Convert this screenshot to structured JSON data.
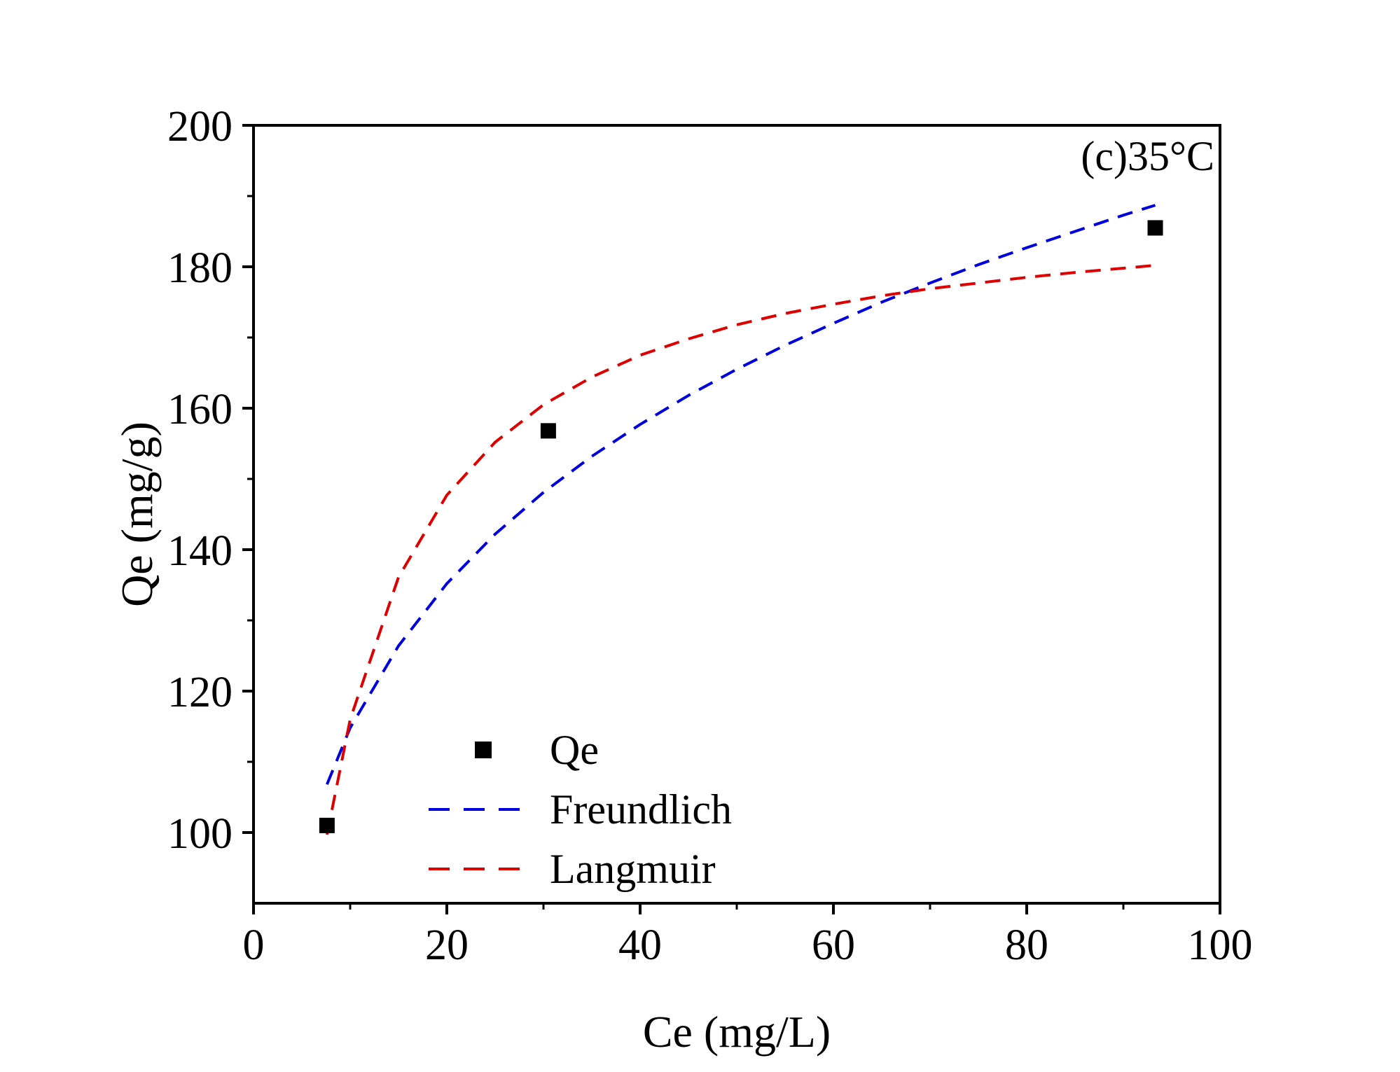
{
  "chart_data": {
    "type": "scatter",
    "title": "",
    "annotation": "(c)35°C",
    "xlabel": "Ce (mg/L)",
    "ylabel": "Qe (mg/g)",
    "xlim": [
      0,
      100
    ],
    "ylim": [
      90,
      200
    ],
    "xticks": [
      0,
      20,
      40,
      60,
      80,
      100
    ],
    "yticks": [
      100,
      120,
      140,
      160,
      180,
      200
    ],
    "grid": false,
    "legend_position": "bottom-left",
    "series": [
      {
        "name": "Qe",
        "kind": "marker",
        "marker": "square",
        "color": "#000000",
        "x": [
          7.6,
          30.5,
          93.3
        ],
        "y": [
          101.0,
          156.8,
          185.5
        ]
      },
      {
        "name": "Freundlich",
        "kind": "line",
        "dash": "dashed",
        "color": "#0000dd",
        "x": [
          7.6,
          10,
          15,
          20,
          25,
          30,
          35,
          40,
          45,
          50,
          55,
          60,
          65,
          70,
          75,
          80,
          85,
          90,
          93.3
        ],
        "y": [
          106.8,
          114.8,
          126.4,
          135.2,
          142.2,
          148.1,
          153.2,
          157.7,
          161.8,
          165.5,
          168.9,
          172.0,
          175.0,
          177.7,
          180.3,
          182.7,
          185.0,
          187.3,
          188.7
        ]
      },
      {
        "name": "Langmuir",
        "kind": "line",
        "dash": "dashed",
        "color": "#dd0000",
        "x": [
          7.6,
          10,
          15,
          20,
          25,
          30,
          35,
          40,
          45,
          50,
          55,
          60,
          65,
          70,
          75,
          80,
          85,
          90,
          93.3
        ],
        "y": [
          99.7,
          116.0,
          136.1,
          147.7,
          155.2,
          160.5,
          164.4,
          167.5,
          169.8,
          171.8,
          173.4,
          174.7,
          175.9,
          176.9,
          177.7,
          178.5,
          179.2,
          179.8,
          180.2
        ]
      }
    ]
  }
}
